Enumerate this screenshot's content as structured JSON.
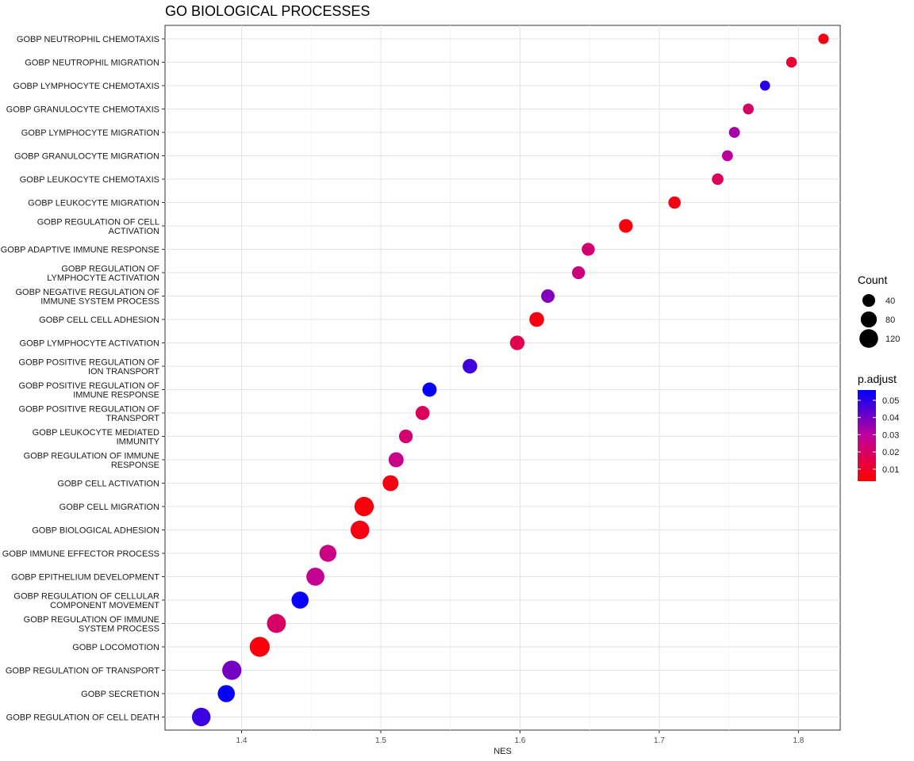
{
  "chart_data": {
    "type": "scatter",
    "title": "GO BIOLOGICAL PROCESSES",
    "xlabel": "NES",
    "ylabel": "",
    "xlim": [
      1.345,
      1.83
    ],
    "xticks": [
      "1.4",
      "1.5",
      "1.6",
      "1.7",
      "1.8"
    ],
    "grid": true,
    "legend_position": "right",
    "size_legend": {
      "title": "Count",
      "values": [
        40,
        80,
        120
      ]
    },
    "color_legend": {
      "title": "p.adjust",
      "ticks": [
        "0.05",
        "0.04",
        "0.03",
        "0.02",
        "0.01"
      ],
      "low_color": "#ff0000",
      "high_color": "#0000ff",
      "range": [
        0.003,
        0.056
      ]
    },
    "points": [
      {
        "term": [
          "GOBP NEUTROPHIL CHEMOTAXIS"
        ],
        "nes": 1.818,
        "count": 20,
        "padjust": 0.006
      },
      {
        "term": [
          "GOBP NEUTROPHIL MIGRATION"
        ],
        "nes": 1.795,
        "count": 22,
        "padjust": 0.012
      },
      {
        "term": [
          "GOBP LYMPHOCYTE CHEMOTAXIS"
        ],
        "nes": 1.776,
        "count": 18,
        "padjust": 0.05
      },
      {
        "term": [
          "GOBP GRANULOCYTE CHEMOTAXIS"
        ],
        "nes": 1.764,
        "count": 23,
        "padjust": 0.02
      },
      {
        "term": [
          "GOBP LYMPHOCYTE MIGRATION"
        ],
        "nes": 1.754,
        "count": 24,
        "padjust": 0.033
      },
      {
        "term": [
          "GOBP GRANULOCYTE MIGRATION"
        ],
        "nes": 1.749,
        "count": 24,
        "padjust": 0.03
      },
      {
        "term": [
          "GOBP LEUKOCYTE CHEMOTAXIS"
        ],
        "nes": 1.742,
        "count": 29,
        "padjust": 0.018
      },
      {
        "term": [
          "GOBP LEUKOCYTE MIGRATION"
        ],
        "nes": 1.711,
        "count": 36,
        "padjust": 0.006
      },
      {
        "term": [
          "GOBP REGULATION OF CELL",
          "ACTIVATION"
        ],
        "nes": 1.676,
        "count": 50,
        "padjust": 0.005
      },
      {
        "term": [
          "GOBP ADAPTIVE IMMUNE RESPONSE"
        ],
        "nes": 1.649,
        "count": 42,
        "padjust": 0.022
      },
      {
        "term": [
          "GOBP REGULATION OF",
          "LYMPHOCYTE ACTIVATION"
        ],
        "nes": 1.642,
        "count": 42,
        "padjust": 0.024
      },
      {
        "term": [
          "GOBP NEGATIVE REGULATION OF",
          "IMMUNE SYSTEM PROCESS"
        ],
        "nes": 1.62,
        "count": 47,
        "padjust": 0.038
      },
      {
        "term": [
          "GOBP CELL CELL ADHESION"
        ],
        "nes": 1.612,
        "count": 62,
        "padjust": 0.006
      },
      {
        "term": [
          "GOBP LYMPHOCYTE ACTIVATION"
        ],
        "nes": 1.598,
        "count": 59,
        "padjust": 0.016
      },
      {
        "term": [
          "GOBP POSITIVE REGULATION OF",
          "ION TRANSPORT"
        ],
        "nes": 1.564,
        "count": 60,
        "padjust": 0.047
      },
      {
        "term": [
          "GOBP POSITIVE REGULATION OF",
          "IMMUNE RESPONSE"
        ],
        "nes": 1.535,
        "count": 56,
        "padjust": 0.055
      },
      {
        "term": [
          "GOBP POSITIVE REGULATION OF",
          "TRANSPORT"
        ],
        "nes": 1.53,
        "count": 54,
        "padjust": 0.018
      },
      {
        "term": [
          "GOBP LEUKOCYTE MEDIATED",
          "IMMUNITY"
        ],
        "nes": 1.518,
        "count": 50,
        "padjust": 0.022
      },
      {
        "term": [
          "GOBP REGULATION OF IMMUNE",
          "RESPONSE"
        ],
        "nes": 1.511,
        "count": 66,
        "padjust": 0.026
      },
      {
        "term": [
          "GOBP CELL ACTIVATION"
        ],
        "nes": 1.507,
        "count": 77,
        "padjust": 0.006
      },
      {
        "term": [
          "GOBP CELL MIGRATION"
        ],
        "nes": 1.488,
        "count": 132,
        "padjust": 0.005
      },
      {
        "term": [
          "GOBP BIOLOGICAL ADHESION"
        ],
        "nes": 1.485,
        "count": 121,
        "padjust": 0.006
      },
      {
        "term": [
          "GOBP IMMUNE EFFECTOR PROCESS"
        ],
        "nes": 1.462,
        "count": 93,
        "padjust": 0.025
      },
      {
        "term": [
          "GOBP EPITHELIUM DEVELOPMENT"
        ],
        "nes": 1.453,
        "count": 110,
        "padjust": 0.028
      },
      {
        "term": [
          "GOBP REGULATION OF CELLULAR",
          "COMPONENT MOVEMENT"
        ],
        "nes": 1.442,
        "count": 94,
        "padjust": 0.055
      },
      {
        "term": [
          "GOBP REGULATION OF IMMUNE",
          "SYSTEM PROCESS"
        ],
        "nes": 1.425,
        "count": 125,
        "padjust": 0.02
      },
      {
        "term": [
          "GOBP LOCOMOTION"
        ],
        "nes": 1.413,
        "count": 145,
        "padjust": 0.005
      },
      {
        "term": [
          "GOBP REGULATION OF TRANSPORT"
        ],
        "nes": 1.393,
        "count": 130,
        "padjust": 0.04
      },
      {
        "term": [
          "GOBP SECRETION"
        ],
        "nes": 1.389,
        "count": 95,
        "padjust": 0.055
      },
      {
        "term": [
          "GOBP REGULATION OF CELL DEATH"
        ],
        "nes": 1.371,
        "count": 118,
        "padjust": 0.048
      }
    ]
  }
}
